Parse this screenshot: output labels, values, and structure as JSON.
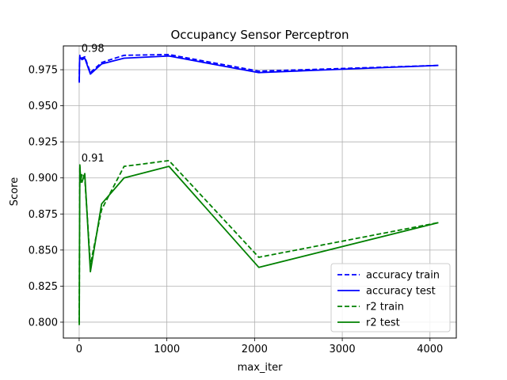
{
  "chart_data": {
    "type": "line",
    "title": "Occupancy Sensor Perceptron",
    "xlabel": "max_iter",
    "ylabel": "Score",
    "xlim": [
      -180,
      4300
    ],
    "ylim": [
      0.789,
      0.9915
    ],
    "xticks": [
      0,
      1000,
      2000,
      3000,
      4000
    ],
    "yticks": [
      0.8,
      0.825,
      0.85,
      0.875,
      0.9,
      0.925,
      0.95,
      0.975
    ],
    "grid": true,
    "legend_position": "bottom-right",
    "series": [
      {
        "name": "accuracy train",
        "color": "#0000ff",
        "style": "dashed",
        "x": [
          1,
          4,
          8,
          16,
          32,
          64,
          128,
          256,
          512,
          1024,
          2048,
          4096
        ],
        "y": [
          0.967,
          0.981,
          0.985,
          0.984,
          0.983,
          0.984,
          0.973,
          0.98,
          0.985,
          0.9855,
          0.974,
          0.978
        ]
      },
      {
        "name": "accuracy test",
        "color": "#0000ff",
        "style": "solid",
        "x": [
          1,
          4,
          8,
          16,
          32,
          64,
          128,
          256,
          512,
          1024,
          2048,
          4096
        ],
        "y": [
          0.966,
          0.98,
          0.984,
          0.983,
          0.982,
          0.983,
          0.972,
          0.979,
          0.983,
          0.9845,
          0.973,
          0.978
        ]
      },
      {
        "name": "r2 train",
        "color": "#008000",
        "style": "dashed",
        "x": [
          1,
          4,
          8,
          16,
          32,
          64,
          128,
          256,
          512,
          1024,
          2048,
          4096
        ],
        "y": [
          0.8,
          0.86,
          0.909,
          0.897,
          0.903,
          0.9,
          0.84,
          0.878,
          0.908,
          0.912,
          0.845,
          0.869
        ]
      },
      {
        "name": "r2 test",
        "color": "#008000",
        "style": "solid",
        "x": [
          1,
          4,
          8,
          16,
          32,
          64,
          128,
          256,
          512,
          1024,
          2048,
          4096
        ],
        "y": [
          0.798,
          0.855,
          0.908,
          0.9,
          0.897,
          0.903,
          0.835,
          0.882,
          0.9,
          0.908,
          0.838,
          0.869
        ]
      }
    ],
    "annotations": [
      {
        "text": "0.98",
        "x": 16,
        "y": 0.984
      },
      {
        "text": "0.91",
        "x": 16,
        "y": 0.908
      }
    ]
  }
}
